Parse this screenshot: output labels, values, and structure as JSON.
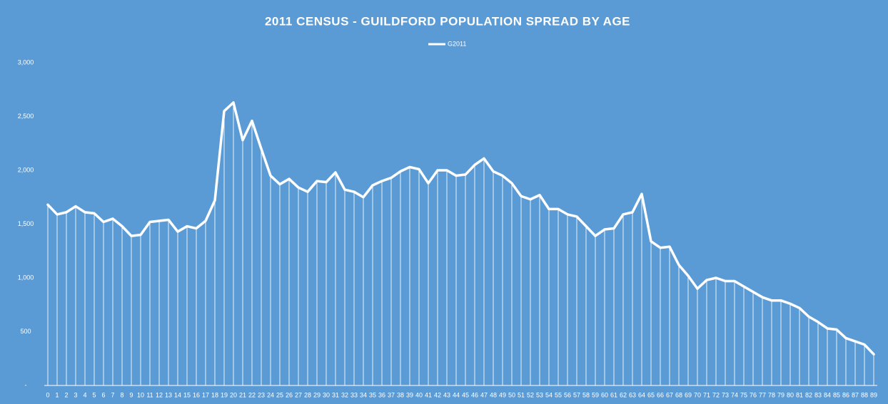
{
  "chart_data": {
    "type": "line",
    "title": "2011 CENSUS - GUILDFORD POPULATION SPREAD BY AGE",
    "categories": [
      0,
      1,
      2,
      3,
      4,
      5,
      6,
      7,
      8,
      9,
      10,
      11,
      12,
      13,
      14,
      15,
      16,
      17,
      18,
      19,
      20,
      21,
      22,
      23,
      24,
      25,
      26,
      27,
      28,
      29,
      30,
      31,
      32,
      33,
      34,
      35,
      36,
      37,
      38,
      39,
      40,
      41,
      42,
      43,
      44,
      45,
      46,
      47,
      48,
      49,
      50,
      51,
      52,
      53,
      54,
      55,
      56,
      57,
      58,
      59,
      60,
      61,
      62,
      63,
      64,
      65,
      66,
      67,
      68,
      69,
      70,
      71,
      72,
      73,
      74,
      75,
      76,
      77,
      78,
      79,
      80,
      81,
      82,
      83,
      84,
      85,
      86,
      87,
      88,
      89
    ],
    "series": [
      {
        "name": "G2011",
        "color": "#ffffff",
        "values": [
          1680,
          1590,
          1610,
          1665,
          1610,
          1600,
          1520,
          1550,
          1480,
          1390,
          1400,
          1520,
          1530,
          1540,
          1430,
          1480,
          1460,
          1530,
          1720,
          2550,
          2630,
          2280,
          2460,
          2200,
          1950,
          1870,
          1920,
          1840,
          1800,
          1900,
          1890,
          1980,
          1820,
          1800,
          1750,
          1860,
          1900,
          1930,
          1990,
          2030,
          2010,
          1880,
          2000,
          2000,
          1950,
          1960,
          2050,
          2110,
          1990,
          1950,
          1880,
          1760,
          1730,
          1770,
          1640,
          1640,
          1590,
          1570,
          1480,
          1390,
          1450,
          1460,
          1590,
          1610,
          1780,
          1340,
          1280,
          1290,
          1120,
          1020,
          900,
          980,
          1000,
          970,
          970,
          920,
          870,
          820,
          790,
          790,
          760,
          720,
          640,
          590,
          530,
          520,
          440,
          410,
          380,
          290
        ]
      }
    ],
    "ylim": [
      0,
      3000
    ],
    "yticks": [
      {
        "value": 0,
        "label": "-"
      },
      500,
      {
        "value": 1000,
        "label": "1,000"
      },
      {
        "value": 1500,
        "label": "1,500"
      },
      {
        "value": 2000,
        "label": "2,000"
      },
      {
        "value": 2500,
        "label": "2,500"
      },
      {
        "value": 3000,
        "label": "3,000"
      }
    ],
    "drop_lines": true,
    "legend": "top"
  }
}
